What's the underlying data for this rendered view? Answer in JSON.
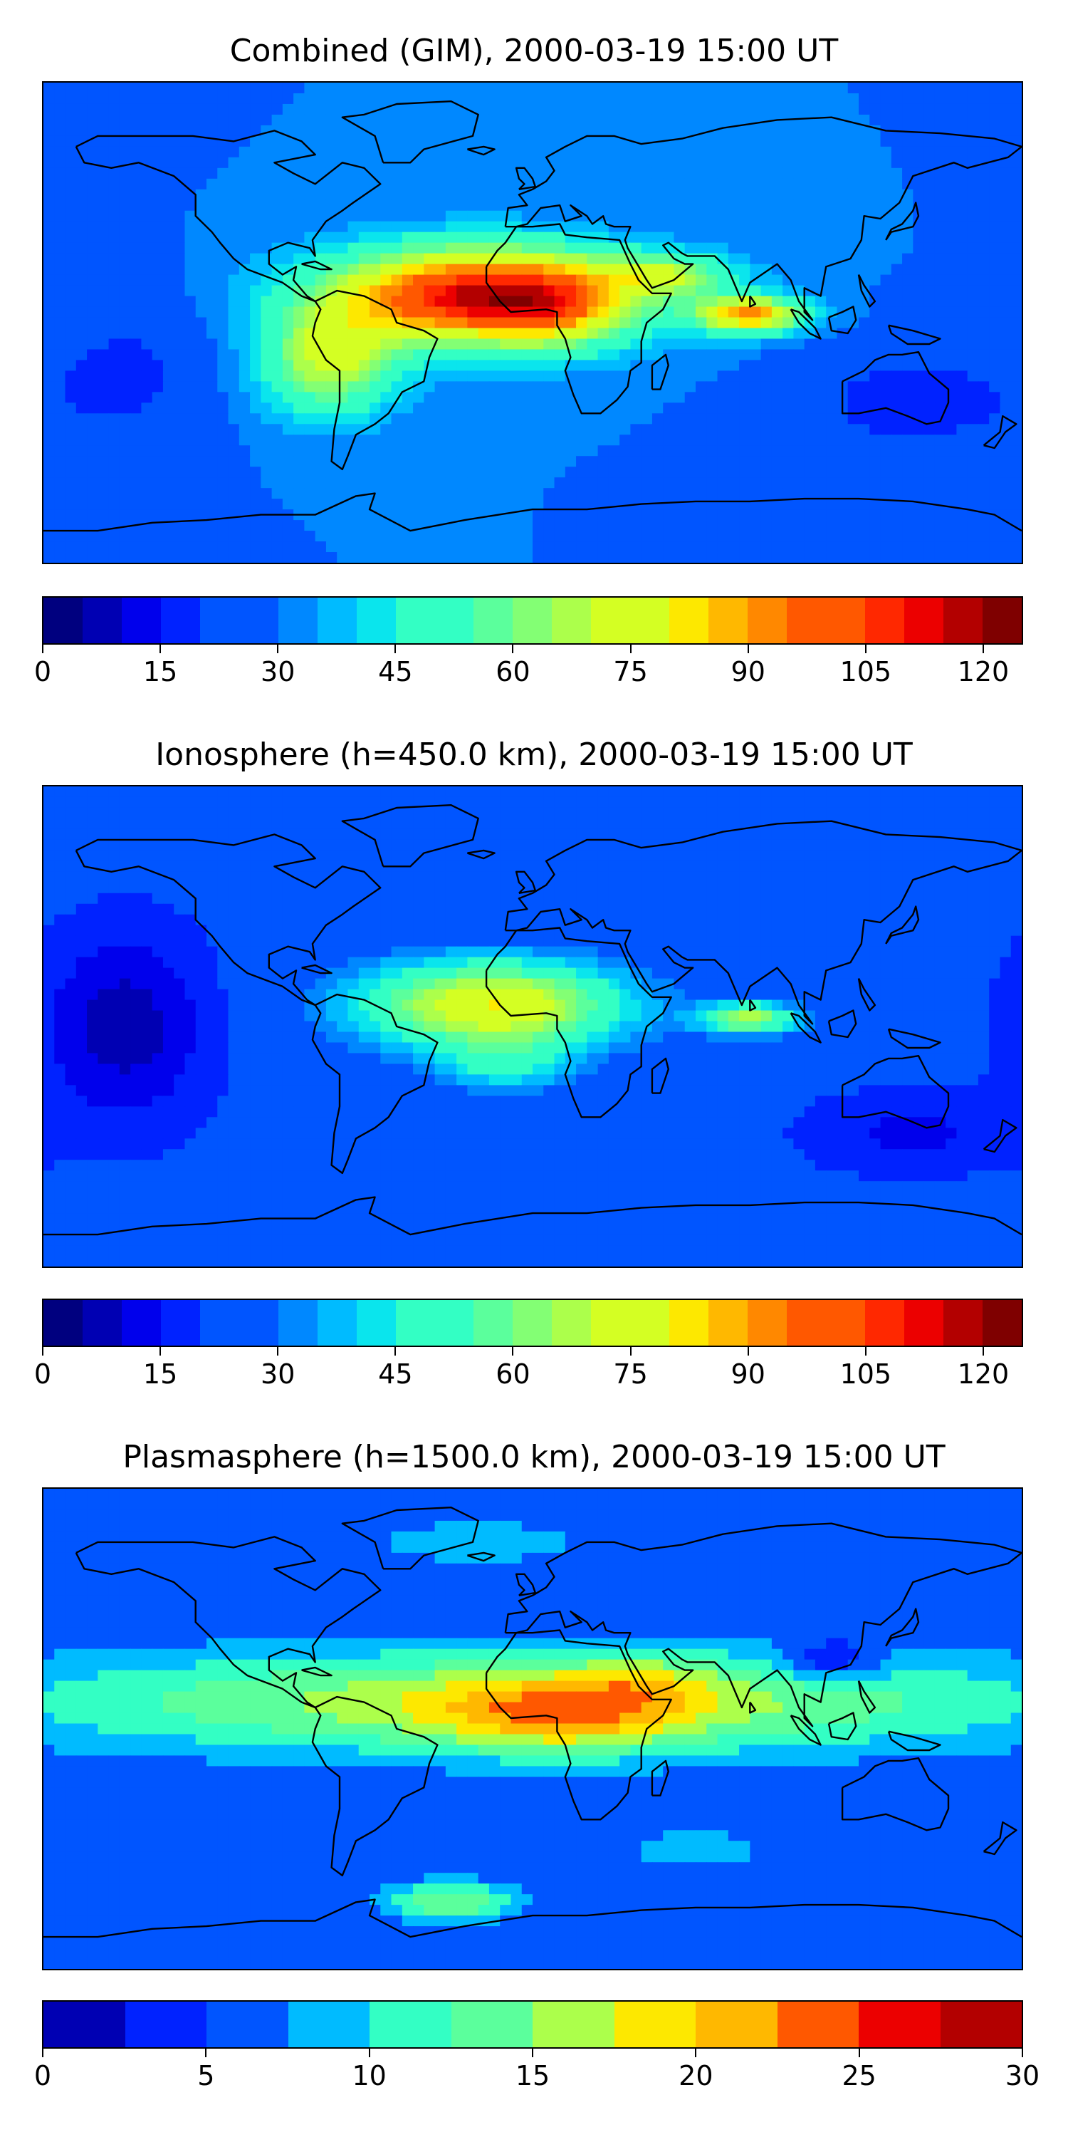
{
  "panels": [
    {
      "title": "Combined (GIM), 2000-03-19 15:00 UT",
      "colorbar": {
        "min": 0,
        "max": 125,
        "levels": 25,
        "ticks": [
          "0",
          "15",
          "30",
          "45",
          "60",
          "75",
          "90",
          "105",
          "120"
        ],
        "tick_values": [
          0,
          15,
          30,
          45,
          60,
          75,
          90,
          105,
          120
        ]
      },
      "field": {
        "base": 30,
        "anomalies": [
          {
            "lon": -20,
            "lat": 10,
            "amp": 85,
            "rlon": 55,
            "rlat": 18
          },
          {
            "lon": 10,
            "lat": 5,
            "amp": 20,
            "rlon": 25,
            "rlat": 15
          },
          {
            "lon": 80,
            "lat": 3,
            "amp": 60,
            "rlon": 20,
            "rlat": 7
          },
          {
            "lon": -75,
            "lat": -15,
            "amp": 40,
            "rlon": 25,
            "rlat": 20
          },
          {
            "lon": 50,
            "lat": 18,
            "amp": 30,
            "rlon": 25,
            "rlat": 8
          },
          {
            "lon": 140,
            "lat": -30,
            "amp": -15,
            "rlon": 40,
            "rlat": 20
          },
          {
            "lon": -150,
            "lat": -20,
            "amp": -12,
            "rlon": 30,
            "rlat": 30
          }
        ]
      }
    },
    {
      "title": "Ionosphere  (h=450.0 km), 2000-03-19 15:00 UT",
      "colorbar": {
        "min": 0,
        "max": 125,
        "levels": 25,
        "ticks": [
          "0",
          "15",
          "30",
          "45",
          "60",
          "75",
          "90",
          "105",
          "120"
        ],
        "tick_values": [
          0,
          15,
          30,
          45,
          60,
          75,
          90,
          105,
          120
        ]
      },
      "field": {
        "base": 22,
        "anomalies": [
          {
            "lon": -15,
            "lat": 8,
            "amp": 58,
            "rlon": 50,
            "rlat": 17
          },
          {
            "lon": -10,
            "lat": -15,
            "amp": 20,
            "rlon": 25,
            "rlat": 10
          },
          {
            "lon": 80,
            "lat": 3,
            "amp": 45,
            "rlon": 18,
            "rlat": 6
          },
          {
            "lon": -150,
            "lat": 0,
            "amp": -15,
            "rlon": 30,
            "rlat": 35
          },
          {
            "lon": 140,
            "lat": -40,
            "amp": -8,
            "rlon": 40,
            "rlat": 15
          }
        ]
      }
    },
    {
      "title": "Plasmasphere (h=1500.0 km), 2000-03-19 15:00 UT",
      "colorbar": {
        "min": 0,
        "max": 30,
        "levels": 12,
        "ticks": [
          "0",
          "5",
          "10",
          "15",
          "20",
          "25",
          "30"
        ],
        "tick_values": [
          0,
          5,
          10,
          15,
          20,
          25,
          30
        ]
      },
      "field": {
        "base": 5,
        "anomalies": [
          {
            "lon": 0,
            "lat": 10,
            "amp": 12,
            "rlon": 200,
            "rlat": 20
          },
          {
            "lon": 10,
            "lat": 5,
            "amp": 8,
            "rlon": 45,
            "rlat": 14
          },
          {
            "lon": 40,
            "lat": 18,
            "amp": 4,
            "rlon": 25,
            "rlat": 10
          },
          {
            "lon": 110,
            "lat": 25,
            "amp": -6,
            "rlon": 18,
            "rlat": 8
          },
          {
            "lon": -30,
            "lat": -65,
            "amp": 10,
            "rlon": 25,
            "rlat": 8
          },
          {
            "lon": 60,
            "lat": -45,
            "amp": 5,
            "rlon": 25,
            "rlat": 8
          },
          {
            "lon": -20,
            "lat": 70,
            "amp": 5,
            "rlon": 40,
            "rlat": 8
          }
        ]
      }
    }
  ],
  "colormap": [
    "#00007f",
    "#0000b3",
    "#0000ec",
    "#0022ff",
    "#0055ff",
    "#0088ff",
    "#00bbff",
    "#0ae5ed",
    "#33ffc4",
    "#5bff9c",
    "#83ff74",
    "#acff4b",
    "#d4ff23",
    "#fde800",
    "#ffb800",
    "#ff8800",
    "#ff5800",
    "#ff2800",
    "#ec0000",
    "#b30000",
    "#7f0000"
  ],
  "coastline_color": "#000000"
}
